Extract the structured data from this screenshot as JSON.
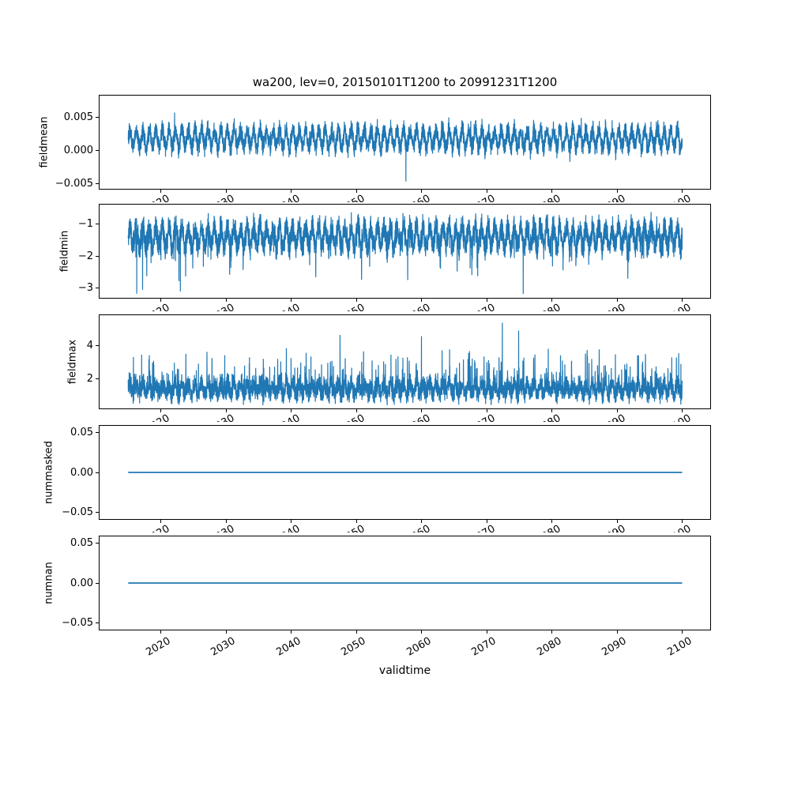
{
  "figure": {
    "background": "#ffffff",
    "text_color": "#000000",
    "line_color": "#1f77b4"
  },
  "chart_data": {
    "type": "line",
    "title": "wa200, lev=0, 20150101T1200 to 20991231T1200",
    "xlabel": "validtime",
    "legend": "none",
    "grid": false,
    "x": {
      "lim": [
        2010.6,
        2104.3
      ],
      "data_range": [
        2015.0,
        2100.0
      ],
      "ticks": [
        2020,
        2030,
        2040,
        2050,
        2060,
        2070,
        2080,
        2090,
        2100
      ],
      "tick_rotation_deg": 30
    },
    "panels": [
      {
        "ylabel": "fieldmean",
        "ylim": [
          -0.0058,
          0.0083
        ],
        "yticks": [
          {
            "v": 0.005,
            "label": "0.005"
          },
          {
            "v": 0.0,
            "label": "0.000"
          },
          {
            "v": -0.005,
            "label": "−0.005"
          }
        ],
        "signal": {
          "kind": "noisy",
          "seed": 101,
          "points": 5200,
          "base": 0.0018,
          "season_amp": 0.0013,
          "noise_amp": 0.0018,
          "spike_prob": 0.02,
          "spike_amp": 0.0018,
          "spike_dir": "both",
          "clamp": [
            -0.0033,
            0.0069
          ],
          "events": [
            {
              "x": 2057.6,
              "y": -0.0047
            }
          ]
        }
      },
      {
        "ylabel": "fieldmin",
        "ylim": [
          -3.3,
          -0.4
        ],
        "yticks": [
          {
            "v": -1,
            "label": "−1"
          },
          {
            "v": -2,
            "label": "−2"
          },
          {
            "v": -3,
            "label": "−3"
          }
        ],
        "signal": {
          "kind": "noisy",
          "seed": 202,
          "points": 5200,
          "base": -1.4,
          "season_amp": 0.3,
          "noise_amp": 0.5,
          "spike_prob": 0.025,
          "spike_amp": 0.95,
          "spike_dir": "down",
          "clamp": [
            -3.22,
            -0.58
          ],
          "events": [
            {
              "x": 2016.3,
              "y": -3.17
            },
            {
              "x": 2017.2,
              "y": -3.05
            },
            {
              "x": 2023.0,
              "y": -3.1
            },
            {
              "x": 2075.6,
              "y": -3.18
            }
          ]
        }
      },
      {
        "ylabel": "fieldmax",
        "ylim": [
          0.23,
          5.8
        ],
        "yticks": [
          {
            "v": 4,
            "label": "4"
          },
          {
            "v": 2,
            "label": "2"
          }
        ],
        "signal": {
          "kind": "noisy",
          "seed": 303,
          "points": 5200,
          "base": 1.4,
          "season_amp": 0.3,
          "noise_amp": 0.75,
          "spike_prob": 0.055,
          "spike_amp": 2.05,
          "spike_dir": "up",
          "clamp": [
            0.42,
            4.8
          ],
          "events": [
            {
              "x": 2072.4,
              "y": 5.35
            },
            {
              "x": 2074.9,
              "y": 4.88
            },
            {
              "x": 2047.5,
              "y": 4.62
            },
            {
              "x": 2060.0,
              "y": 4.55
            }
          ]
        }
      },
      {
        "ylabel": "nummasked",
        "ylim": [
          -0.0585,
          0.0585
        ],
        "yticks": [
          {
            "v": 0.05,
            "label": "0.05"
          },
          {
            "v": 0.0,
            "label": "0.00"
          },
          {
            "v": -0.05,
            "label": "−0.05"
          }
        ],
        "signal": {
          "kind": "constant",
          "value": 0
        }
      },
      {
        "ylabel": "numnan",
        "ylim": [
          -0.0585,
          0.0585
        ],
        "yticks": [
          {
            "v": 0.05,
            "label": "0.05"
          },
          {
            "v": 0.0,
            "label": "0.00"
          },
          {
            "v": -0.05,
            "label": "−0.05"
          }
        ],
        "signal": {
          "kind": "constant",
          "value": 0
        }
      }
    ]
  }
}
